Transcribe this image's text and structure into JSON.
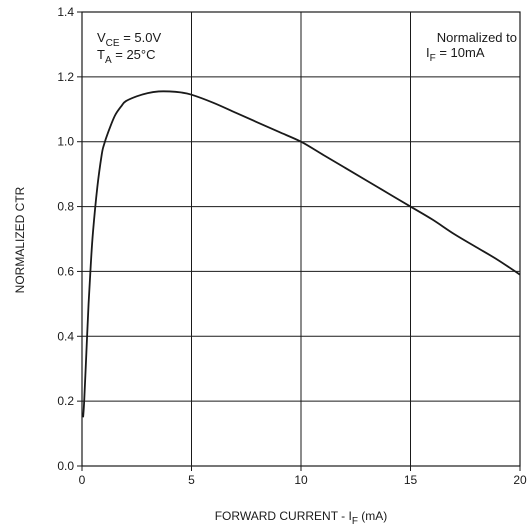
{
  "chart_data": {
    "type": "line",
    "xlabel": {
      "main": "FORWARD CURRENT - I",
      "sub": "F",
      "unit": " (mA)"
    },
    "ylabel": "NORMALIZED CTR",
    "xlim": [
      0,
      20
    ],
    "ylim": [
      0,
      1.4
    ],
    "x_ticks": [
      0,
      5,
      10,
      15,
      20
    ],
    "x_tick_labels": [
      "0",
      "5",
      "10",
      "15",
      "20"
    ],
    "y_ticks": [
      0,
      0.2,
      0.4,
      0.6,
      0.8,
      1.0,
      1.2,
      1.4
    ],
    "y_tick_labels": [
      "0.0",
      "0.2",
      "0.4",
      "0.6",
      "0.8",
      "1.0",
      "1.2",
      "1.4"
    ],
    "grid": true,
    "series": [
      {
        "x": [
          0.05,
          0.1,
          0.2,
          0.3,
          0.4,
          0.5,
          0.7,
          0.9,
          1.0,
          1.2,
          1.5,
          1.8,
          2.0,
          2.5,
          3.0,
          3.5,
          4.0,
          4.5,
          5.0,
          6.0,
          7.0,
          8.0,
          9.0,
          10.0,
          11.0,
          12.0,
          13.0,
          14.0,
          15.0,
          16.0,
          17.0,
          18.0,
          19.0,
          20.0
        ],
        "y": [
          0.15,
          0.2,
          0.35,
          0.5,
          0.62,
          0.72,
          0.86,
          0.96,
          0.99,
          1.03,
          1.08,
          1.11,
          1.125,
          1.14,
          1.15,
          1.155,
          1.155,
          1.152,
          1.145,
          1.12,
          1.09,
          1.06,
          1.03,
          1.0,
          0.96,
          0.92,
          0.88,
          0.84,
          0.8,
          0.76,
          0.715,
          0.675,
          0.635,
          0.59
        ]
      }
    ],
    "annotations": {
      "conditions": {
        "line1_main": "V",
        "line1_sub": "CE",
        "line1_rest": " = 5.0V",
        "line2_main": "T",
        "line2_sub": "A",
        "line2_rest": " = 25°C"
      },
      "normalization": {
        "line1": "Normalized to",
        "line2_main": "I",
        "line2_sub": "F",
        "line2_rest": " = 10mA"
      }
    }
  }
}
